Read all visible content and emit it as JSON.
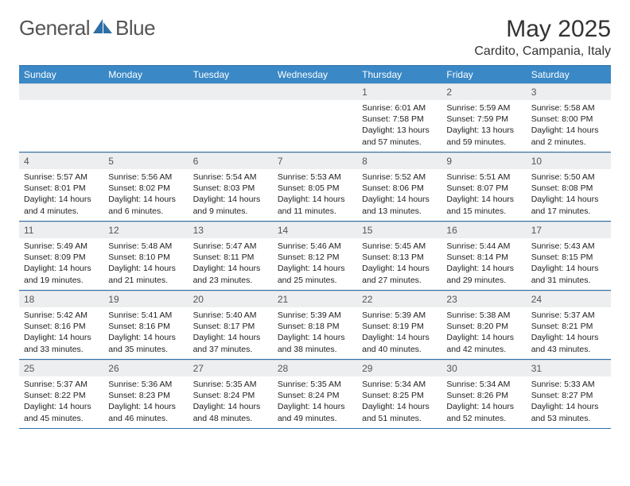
{
  "branding": {
    "logo_part1": "General",
    "logo_part2": "Blue",
    "logo_icon_color": "#2f6fa7"
  },
  "header": {
    "title": "May 2025",
    "subtitle": "Cardito, Campania, Italy"
  },
  "colors": {
    "header_bg": "#3a88c6",
    "header_text": "#ffffff",
    "daynum_bg": "#eceef0",
    "row_border": "#2f6fa7"
  },
  "day_headers": [
    "Sunday",
    "Monday",
    "Tuesday",
    "Wednesday",
    "Thursday",
    "Friday",
    "Saturday"
  ],
  "weeks": [
    [
      {
        "n": "",
        "sr": "",
        "ss": "",
        "dl": ""
      },
      {
        "n": "",
        "sr": "",
        "ss": "",
        "dl": ""
      },
      {
        "n": "",
        "sr": "",
        "ss": "",
        "dl": ""
      },
      {
        "n": "",
        "sr": "",
        "ss": "",
        "dl": ""
      },
      {
        "n": "1",
        "sr": "Sunrise: 6:01 AM",
        "ss": "Sunset: 7:58 PM",
        "dl": "Daylight: 13 hours and 57 minutes."
      },
      {
        "n": "2",
        "sr": "Sunrise: 5:59 AM",
        "ss": "Sunset: 7:59 PM",
        "dl": "Daylight: 13 hours and 59 minutes."
      },
      {
        "n": "3",
        "sr": "Sunrise: 5:58 AM",
        "ss": "Sunset: 8:00 PM",
        "dl": "Daylight: 14 hours and 2 minutes."
      }
    ],
    [
      {
        "n": "4",
        "sr": "Sunrise: 5:57 AM",
        "ss": "Sunset: 8:01 PM",
        "dl": "Daylight: 14 hours and 4 minutes."
      },
      {
        "n": "5",
        "sr": "Sunrise: 5:56 AM",
        "ss": "Sunset: 8:02 PM",
        "dl": "Daylight: 14 hours and 6 minutes."
      },
      {
        "n": "6",
        "sr": "Sunrise: 5:54 AM",
        "ss": "Sunset: 8:03 PM",
        "dl": "Daylight: 14 hours and 9 minutes."
      },
      {
        "n": "7",
        "sr": "Sunrise: 5:53 AM",
        "ss": "Sunset: 8:05 PM",
        "dl": "Daylight: 14 hours and 11 minutes."
      },
      {
        "n": "8",
        "sr": "Sunrise: 5:52 AM",
        "ss": "Sunset: 8:06 PM",
        "dl": "Daylight: 14 hours and 13 minutes."
      },
      {
        "n": "9",
        "sr": "Sunrise: 5:51 AM",
        "ss": "Sunset: 8:07 PM",
        "dl": "Daylight: 14 hours and 15 minutes."
      },
      {
        "n": "10",
        "sr": "Sunrise: 5:50 AM",
        "ss": "Sunset: 8:08 PM",
        "dl": "Daylight: 14 hours and 17 minutes."
      }
    ],
    [
      {
        "n": "11",
        "sr": "Sunrise: 5:49 AM",
        "ss": "Sunset: 8:09 PM",
        "dl": "Daylight: 14 hours and 19 minutes."
      },
      {
        "n": "12",
        "sr": "Sunrise: 5:48 AM",
        "ss": "Sunset: 8:10 PM",
        "dl": "Daylight: 14 hours and 21 minutes."
      },
      {
        "n": "13",
        "sr": "Sunrise: 5:47 AM",
        "ss": "Sunset: 8:11 PM",
        "dl": "Daylight: 14 hours and 23 minutes."
      },
      {
        "n": "14",
        "sr": "Sunrise: 5:46 AM",
        "ss": "Sunset: 8:12 PM",
        "dl": "Daylight: 14 hours and 25 minutes."
      },
      {
        "n": "15",
        "sr": "Sunrise: 5:45 AM",
        "ss": "Sunset: 8:13 PM",
        "dl": "Daylight: 14 hours and 27 minutes."
      },
      {
        "n": "16",
        "sr": "Sunrise: 5:44 AM",
        "ss": "Sunset: 8:14 PM",
        "dl": "Daylight: 14 hours and 29 minutes."
      },
      {
        "n": "17",
        "sr": "Sunrise: 5:43 AM",
        "ss": "Sunset: 8:15 PM",
        "dl": "Daylight: 14 hours and 31 minutes."
      }
    ],
    [
      {
        "n": "18",
        "sr": "Sunrise: 5:42 AM",
        "ss": "Sunset: 8:16 PM",
        "dl": "Daylight: 14 hours and 33 minutes."
      },
      {
        "n": "19",
        "sr": "Sunrise: 5:41 AM",
        "ss": "Sunset: 8:16 PM",
        "dl": "Daylight: 14 hours and 35 minutes."
      },
      {
        "n": "20",
        "sr": "Sunrise: 5:40 AM",
        "ss": "Sunset: 8:17 PM",
        "dl": "Daylight: 14 hours and 37 minutes."
      },
      {
        "n": "21",
        "sr": "Sunrise: 5:39 AM",
        "ss": "Sunset: 8:18 PM",
        "dl": "Daylight: 14 hours and 38 minutes."
      },
      {
        "n": "22",
        "sr": "Sunrise: 5:39 AM",
        "ss": "Sunset: 8:19 PM",
        "dl": "Daylight: 14 hours and 40 minutes."
      },
      {
        "n": "23",
        "sr": "Sunrise: 5:38 AM",
        "ss": "Sunset: 8:20 PM",
        "dl": "Daylight: 14 hours and 42 minutes."
      },
      {
        "n": "24",
        "sr": "Sunrise: 5:37 AM",
        "ss": "Sunset: 8:21 PM",
        "dl": "Daylight: 14 hours and 43 minutes."
      }
    ],
    [
      {
        "n": "25",
        "sr": "Sunrise: 5:37 AM",
        "ss": "Sunset: 8:22 PM",
        "dl": "Daylight: 14 hours and 45 minutes."
      },
      {
        "n": "26",
        "sr": "Sunrise: 5:36 AM",
        "ss": "Sunset: 8:23 PM",
        "dl": "Daylight: 14 hours and 46 minutes."
      },
      {
        "n": "27",
        "sr": "Sunrise: 5:35 AM",
        "ss": "Sunset: 8:24 PM",
        "dl": "Daylight: 14 hours and 48 minutes."
      },
      {
        "n": "28",
        "sr": "Sunrise: 5:35 AM",
        "ss": "Sunset: 8:24 PM",
        "dl": "Daylight: 14 hours and 49 minutes."
      },
      {
        "n": "29",
        "sr": "Sunrise: 5:34 AM",
        "ss": "Sunset: 8:25 PM",
        "dl": "Daylight: 14 hours and 51 minutes."
      },
      {
        "n": "30",
        "sr": "Sunrise: 5:34 AM",
        "ss": "Sunset: 8:26 PM",
        "dl": "Daylight: 14 hours and 52 minutes."
      },
      {
        "n": "31",
        "sr": "Sunrise: 5:33 AM",
        "ss": "Sunset: 8:27 PM",
        "dl": "Daylight: 14 hours and 53 minutes."
      }
    ]
  ]
}
